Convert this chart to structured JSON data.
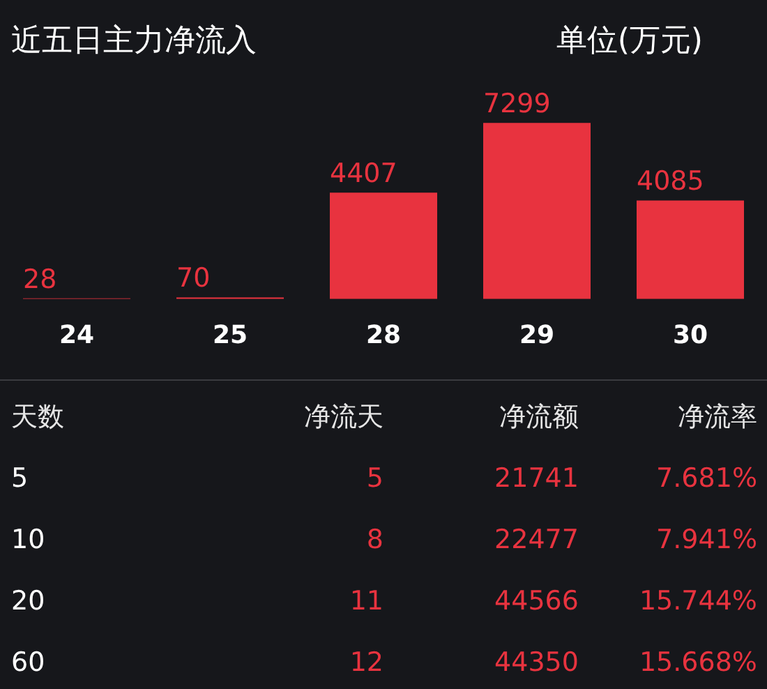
{
  "chart_data": [
    {
      "type": "bar",
      "title": "近五日主力净流入",
      "subtitle": "单位(万元)",
      "categories": [
        "24",
        "25",
        "28",
        "29",
        "30"
      ],
      "values": [
        28,
        70,
        4407,
        7299,
        4085
      ],
      "color": "#e8333f",
      "data_labels": true,
      "legend": false,
      "tick_labels": "x"
    },
    {
      "type": "other",
      "annotations": [
        "天数",
        "净流天",
        "净流额",
        "净流率",
        "5",
        "5",
        "21741",
        "7.681%",
        "10",
        "8",
        "22477",
        "7.941%",
        "20",
        "11",
        "44566",
        "15.744%",
        "60",
        "12",
        "44350",
        "15.668%"
      ]
    }
  ]
}
